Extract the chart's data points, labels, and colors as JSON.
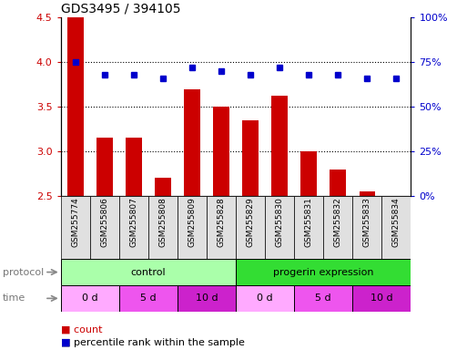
{
  "title": "GDS3495 / 394105",
  "samples": [
    "GSM255774",
    "GSM255806",
    "GSM255807",
    "GSM255808",
    "GSM255809",
    "GSM255828",
    "GSM255829",
    "GSM255830",
    "GSM255831",
    "GSM255832",
    "GSM255833",
    "GSM255834"
  ],
  "bar_values": [
    4.5,
    3.15,
    3.15,
    2.7,
    3.7,
    3.5,
    3.35,
    3.62,
    3.0,
    2.8,
    2.55,
    2.5
  ],
  "dot_values": [
    75,
    68,
    68,
    66,
    72,
    70,
    68,
    72,
    68,
    68,
    66,
    66
  ],
  "bar_color": "#cc0000",
  "dot_color": "#0000cc",
  "ylim_left": [
    2.5,
    4.5
  ],
  "ylim_right": [
    0,
    100
  ],
  "yticks_left": [
    2.5,
    3.0,
    3.5,
    4.0,
    4.5
  ],
  "yticks_right": [
    0,
    25,
    50,
    75,
    100
  ],
  "ytick_labels_right": [
    "0%",
    "25%",
    "50%",
    "75%",
    "100%"
  ],
  "grid_lines": [
    3.0,
    3.5,
    4.0
  ],
  "protocol_ctrl_color": "#aaffaa",
  "protocol_prog_color": "#33dd33",
  "time_colors": [
    "#ffaaff",
    "#ee55ee",
    "#cc22cc"
  ],
  "time_segments": [
    {
      "label": "0 d",
      "start": 0,
      "end": 2
    },
    {
      "label": "5 d",
      "start": 2,
      "end": 4
    },
    {
      "label": "10 d",
      "start": 4,
      "end": 6
    },
    {
      "label": "0 d",
      "start": 6,
      "end": 8
    },
    {
      "label": "5 d",
      "start": 8,
      "end": 10
    },
    {
      "label": "10 d",
      "start": 10,
      "end": 12
    }
  ],
  "legend_count_color": "#cc0000",
  "legend_dot_color": "#0000cc"
}
